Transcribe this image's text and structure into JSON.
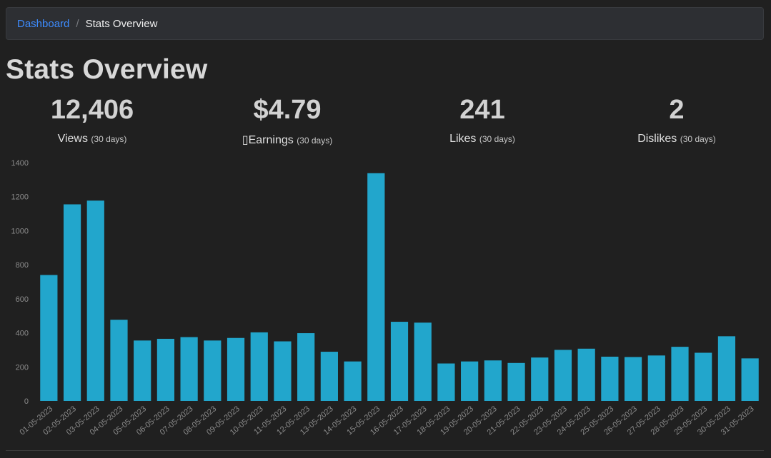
{
  "breadcrumb": {
    "home_label": "Dashboard",
    "separator": "/",
    "current_label": "Stats Overview"
  },
  "page": {
    "title": "Stats Overview"
  },
  "stats": [
    {
      "value": "12,406",
      "label": "Views",
      "period": "(30 days)"
    },
    {
      "value": "$4.79",
      "label": "▯Earnings",
      "period": "(30 days)"
    },
    {
      "value": "241",
      "label": "Likes",
      "period": "(30 days)"
    },
    {
      "value": "2",
      "label": "Dislikes",
      "period": "(30 days)"
    }
  ],
  "colors": {
    "bar": "#22a6cc",
    "axis_text": "#8c8c8c",
    "accent_link": "#3d8bfd"
  },
  "chart_data": {
    "type": "bar",
    "categories": [
      "01-05-2023",
      "02-05-2023",
      "03-05-2023",
      "04-05-2023",
      "05-05-2023",
      "06-05-2023",
      "07-05-2023",
      "08-05-2023",
      "09-05-2023",
      "10-05-2023",
      "11-05-2023",
      "12-05-2023",
      "13-05-2023",
      "14-05-2023",
      "15-05-2023",
      "16-05-2023",
      "17-05-2023",
      "18-05-2023",
      "19-05-2023",
      "20-05-2023",
      "21-05-2023",
      "22-05-2023",
      "23-05-2023",
      "24-05-2023",
      "25-05-2023",
      "26-05-2023",
      "27-05-2023",
      "28-05-2023",
      "29-05-2023",
      "30-05-2023",
      "31-05-2023"
    ],
    "values": [
      740,
      1155,
      1177,
      477,
      355,
      365,
      375,
      355,
      370,
      403,
      350,
      398,
      289,
      232,
      1338,
      465,
      460,
      220,
      232,
      238,
      223,
      255,
      300,
      307,
      260,
      258,
      267,
      318,
      283,
      380,
      250
    ],
    "yticks": [
      "0",
      "200",
      "400",
      "600",
      "800",
      "1000",
      "1200",
      "1400"
    ],
    "ylim": [
      0,
      1400
    ],
    "grid": false,
    "title": "",
    "xlabel": "",
    "ylabel": ""
  }
}
